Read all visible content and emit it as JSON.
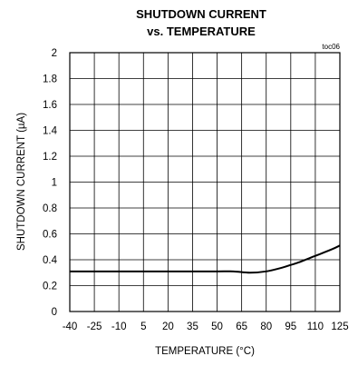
{
  "chart_data": {
    "type": "line",
    "title": "SHUTDOWN CURRENT",
    "subtitle": "vs. TEMPERATURE",
    "tag": "toc06",
    "xlabel": "TEMPERATURE (°C)",
    "ylabel": "SHUTDOWN CURRENT (µA)",
    "xlim": [
      -40,
      125
    ],
    "ylim": [
      0,
      2
    ],
    "x_ticks": [
      -40,
      -25,
      -10,
      5,
      20,
      35,
      50,
      65,
      80,
      95,
      110,
      125
    ],
    "y_ticks": [
      0,
      0.2,
      0.4,
      0.6,
      0.8,
      1,
      1.2,
      1.4,
      1.6,
      1.8,
      2
    ],
    "grid": true,
    "legend": "none",
    "series": [
      {
        "x": [
          -40,
          -25,
          -10,
          5,
          20,
          35,
          50,
          60,
          70,
          80,
          90,
          95,
          100,
          110,
          120,
          125
        ],
        "y": [
          0.31,
          0.31,
          0.31,
          0.31,
          0.31,
          0.31,
          0.31,
          0.31,
          0.3,
          0.31,
          0.34,
          0.36,
          0.38,
          0.43,
          0.48,
          0.51
        ]
      }
    ]
  }
}
